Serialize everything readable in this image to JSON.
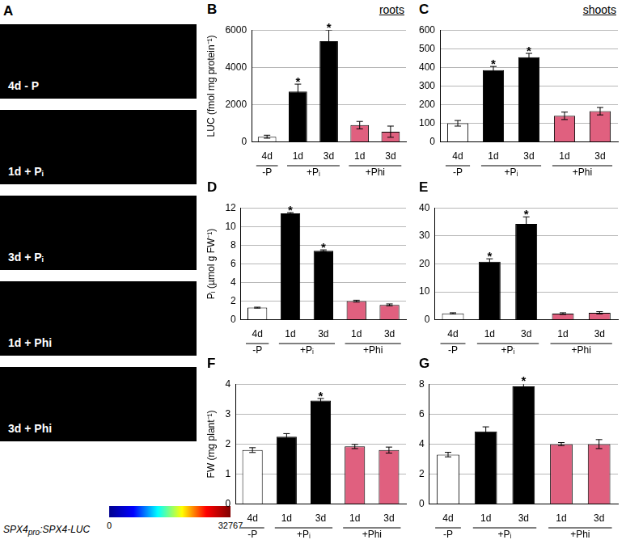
{
  "image_panel": {
    "panel": "A",
    "rows": [
      "4d - P",
      "1d + Pᵢ",
      "3d + Pᵢ",
      "1d + Phi",
      "3d + Phi"
    ],
    "caption": {
      "main": "SPX4",
      "sub": "pro",
      "rest": ":SPX4-LUC"
    },
    "colorbar": {
      "range": [
        0,
        32767
      ],
      "ticks": [
        0,
        32767
      ]
    }
  },
  "chart_data": [
    {
      "panel": "B",
      "title": "roots",
      "type": "bar",
      "categories": [
        "4d",
        "1d",
        "3d",
        "1d",
        "3d"
      ],
      "groups": [
        "-P",
        "+Pᵢ",
        "+Pᵢ",
        "+Phi",
        "+Phi"
      ],
      "values": [
        280,
        2700,
        5400,
        900,
        550
      ],
      "errors": [
        80,
        400,
        600,
        200,
        300
      ],
      "significance": [
        null,
        "*",
        "*",
        null,
        null
      ],
      "colors": [
        "#ffffff",
        "#000000",
        "#000000",
        "#e0607f",
        "#e0607f"
      ],
      "ylabel": "LUC (fmol mg protein⁻¹)",
      "ylim": [
        0,
        6000
      ],
      "yticks": [
        0,
        2000,
        4000,
        6000
      ],
      "grid": true
    },
    {
      "panel": "C",
      "title": "shoots",
      "type": "bar",
      "categories": [
        "4d",
        "1d",
        "3d",
        "1d",
        "3d"
      ],
      "groups": [
        "-P",
        "+Pᵢ",
        "+Pᵢ",
        "+Phi",
        "+Phi"
      ],
      "values": [
        100,
        385,
        455,
        140,
        165
      ],
      "errors": [
        15,
        20,
        20,
        20,
        20
      ],
      "significance": [
        null,
        "*",
        "*",
        null,
        null
      ],
      "colors": [
        "#ffffff",
        "#000000",
        "#000000",
        "#e0607f",
        "#e0607f"
      ],
      "ylim": [
        0,
        600
      ],
      "yticks": [
        0,
        100,
        200,
        300,
        400,
        500,
        600
      ],
      "grid": true
    },
    {
      "panel": "D",
      "type": "bar",
      "categories": [
        "4d",
        "1d",
        "3d",
        "1d",
        "3d"
      ],
      "groups": [
        "-P",
        "+Pᵢ",
        "+Pᵢ",
        "+Phi",
        "+Phi"
      ],
      "values": [
        1.3,
        11.4,
        7.4,
        2.0,
        1.6
      ],
      "errors": [
        0.05,
        0.1,
        0.1,
        0.1,
        0.1
      ],
      "significance": [
        null,
        "*",
        "*",
        null,
        null
      ],
      "colors": [
        "#ffffff",
        "#000000",
        "#000000",
        "#e0607f",
        "#e0607f"
      ],
      "ylabel": "Pᵢ (µmol g FW⁻¹)",
      "ylim": [
        0,
        12
      ],
      "yticks": [
        0,
        2,
        4,
        6,
        8,
        10,
        12
      ],
      "grid": true
    },
    {
      "panel": "E",
      "type": "bar",
      "categories": [
        "4d",
        "1d",
        "3d",
        "1d",
        "3d"
      ],
      "groups": [
        "-P",
        "+Pᵢ",
        "+Pᵢ",
        "+Phi",
        "+Phi"
      ],
      "values": [
        2.3,
        20.8,
        34.3,
        2.2,
        2.5
      ],
      "errors": [
        0.2,
        1,
        2.5,
        0.3,
        0.4
      ],
      "significance": [
        null,
        "*",
        "*",
        null,
        null
      ],
      "colors": [
        "#ffffff",
        "#000000",
        "#000000",
        "#e0607f",
        "#e0607f"
      ],
      "ylim": [
        0,
        40
      ],
      "yticks": [
        0,
        10,
        20,
        30,
        40
      ],
      "grid": true
    },
    {
      "panel": "F",
      "type": "bar",
      "categories": [
        "4d",
        "1d",
        "3d",
        "1d",
        "3d"
      ],
      "groups": [
        "-P",
        "+Pᵢ",
        "+Pᵢ",
        "+Phi",
        "+Phi"
      ],
      "values": [
        1.8,
        2.25,
        3.45,
        1.92,
        1.8
      ],
      "errors": [
        0.08,
        0.1,
        0.07,
        0.07,
        0.1
      ],
      "significance": [
        null,
        null,
        "*",
        null,
        null
      ],
      "colors": [
        "#ffffff",
        "#000000",
        "#000000",
        "#e0607f",
        "#e0607f"
      ],
      "ylabel": "FW (mg plant⁻¹)",
      "ylim": [
        0,
        4
      ],
      "yticks": [
        0,
        1,
        2,
        3,
        4
      ],
      "grid": true
    },
    {
      "panel": "G",
      "type": "bar",
      "categories": [
        "4d",
        "1d",
        "3d",
        "1d",
        "3d"
      ],
      "groups": [
        "-P",
        "+Pᵢ",
        "+Pᵢ",
        "+Phi",
        "+Phi"
      ],
      "values": [
        3.3,
        4.85,
        7.85,
        4.0,
        4.0
      ],
      "errors": [
        0.15,
        0.3,
        0.2,
        0.1,
        0.3
      ],
      "significance": [
        null,
        null,
        "*",
        null,
        null
      ],
      "colors": [
        "#ffffff",
        "#000000",
        "#000000",
        "#e0607f",
        "#e0607f"
      ],
      "ylim": [
        0,
        8
      ],
      "yticks": [
        0,
        2,
        4,
        6,
        8
      ],
      "grid": true
    }
  ]
}
